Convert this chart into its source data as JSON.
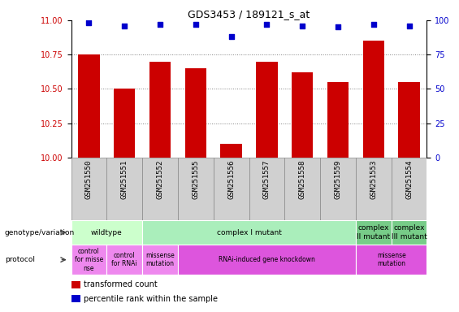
{
  "title": "GDS3453 / 189121_s_at",
  "samples": [
    "GSM251550",
    "GSM251551",
    "GSM251552",
    "GSM251555",
    "GSM251556",
    "GSM251557",
    "GSM251558",
    "GSM251559",
    "GSM251553",
    "GSM251554"
  ],
  "bar_values": [
    10.75,
    10.5,
    10.7,
    10.65,
    10.1,
    10.7,
    10.62,
    10.55,
    10.85,
    10.55
  ],
  "dot_values": [
    98,
    96,
    97,
    97,
    88,
    97,
    96,
    95,
    97,
    96
  ],
  "ylim_left": [
    10,
    11
  ],
  "ylim_right": [
    0,
    100
  ],
  "yticks_left": [
    10,
    10.25,
    10.5,
    10.75,
    11
  ],
  "yticks_right": [
    0,
    25,
    50,
    75,
    100
  ],
  "grid_lines": [
    10.25,
    10.5,
    10.75
  ],
  "bar_color": "#cc0000",
  "dot_color": "#0000cc",
  "bar_width": 0.6,
  "sample_bg_color": "#d0d0d0",
  "sample_border_color": "#888888",
  "genotype_row": [
    {
      "label": "wildtype",
      "start": 0,
      "end": 2,
      "color": "#ccffcc"
    },
    {
      "label": "complex I mutant",
      "start": 2,
      "end": 8,
      "color": "#aaeebb"
    },
    {
      "label": "complex\nII mutant",
      "start": 8,
      "end": 9,
      "color": "#77cc88"
    },
    {
      "label": "complex\nIII mutant",
      "start": 9,
      "end": 10,
      "color": "#77cc88"
    }
  ],
  "protocol_row": [
    {
      "label": "control\nfor misse\nnse",
      "start": 0,
      "end": 1,
      "color": "#ee88ee"
    },
    {
      "label": "control\nfor RNAi",
      "start": 1,
      "end": 2,
      "color": "#ee88ee"
    },
    {
      "label": "missense\nmutation",
      "start": 2,
      "end": 3,
      "color": "#ee88ee"
    },
    {
      "label": "RNAi-induced gene knockdown",
      "start": 3,
      "end": 8,
      "color": "#dd55dd"
    },
    {
      "label": "missense\nmutation",
      "start": 8,
      "end": 10,
      "color": "#dd55dd"
    }
  ],
  "left_label_color": "#cc0000",
  "right_label_color": "#0000cc",
  "left_row_labels": [
    "genotype/variation",
    "protocol"
  ],
  "legend_items": [
    {
      "color": "#cc0000",
      "label": "transformed count"
    },
    {
      "color": "#0000cc",
      "label": "percentile rank within the sample"
    }
  ]
}
